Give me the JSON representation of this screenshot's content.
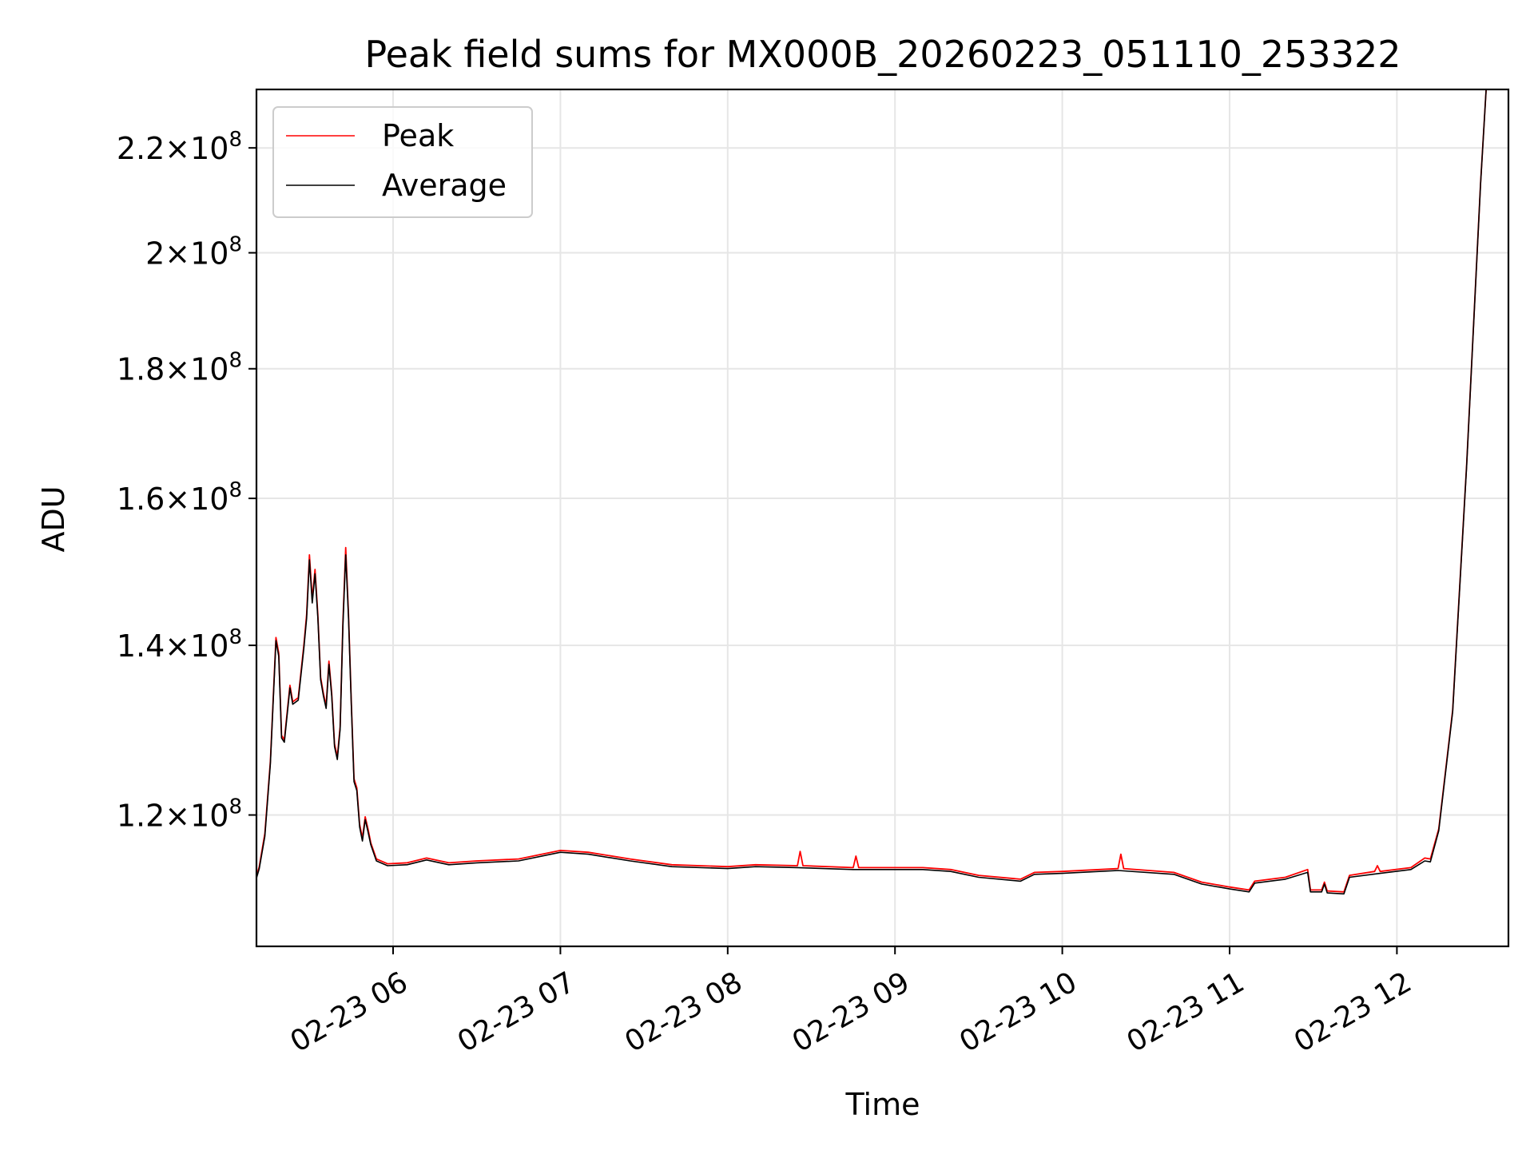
{
  "chart_data": {
    "type": "line",
    "title": "Peak field sums for MX000B_20260223_051110_253322",
    "xlabel": "Time",
    "ylabel": "ADU",
    "y_scale": "log",
    "grid": true,
    "legend_position": "top-left",
    "xlim": [
      "2026-02-23T05:11",
      "2026-02-23T12:40"
    ],
    "ylim": [
      106500000,
      232000000
    ],
    "x_ticks": [
      {
        "t": "2026-02-23T06:00",
        "label": "02-23 06"
      },
      {
        "t": "2026-02-23T07:00",
        "label": "02-23 07"
      },
      {
        "t": "2026-02-23T08:00",
        "label": "02-23 08"
      },
      {
        "t": "2026-02-23T09:00",
        "label": "02-23 09"
      },
      {
        "t": "2026-02-23T10:00",
        "label": "02-23 10"
      },
      {
        "t": "2026-02-23T11:00",
        "label": "02-23 11"
      },
      {
        "t": "2026-02-23T12:00",
        "label": "02-23 12"
      }
    ],
    "y_ticks": [
      {
        "v": 120000000,
        "mant": "1.2",
        "exp": "8"
      },
      {
        "v": 140000000,
        "mant": "1.4",
        "exp": "8"
      },
      {
        "v": 160000000,
        "mant": "1.6",
        "exp": "8"
      },
      {
        "v": 180000000,
        "mant": "1.8",
        "exp": "8"
      },
      {
        "v": 200000000,
        "mant": "2",
        "exp": "8"
      },
      {
        "v": 220000000,
        "mant": "2.2",
        "exp": "8"
      }
    ],
    "series": [
      {
        "name": "Peak",
        "color": "#ff0000",
        "points": [
          [
            "2026-02-23T05:11",
            113500000
          ],
          [
            "2026-02-23T05:12",
            114500000
          ],
          [
            "2026-02-23T05:14",
            118000000
          ],
          [
            "2026-02-23T05:16",
            126000000
          ],
          [
            "2026-02-23T05:18",
            141000000
          ],
          [
            "2026-02-23T05:19",
            139000000
          ],
          [
            "2026-02-23T05:20",
            129000000
          ],
          [
            "2026-02-23T05:21",
            128500000
          ],
          [
            "2026-02-23T05:23",
            135000000
          ],
          [
            "2026-02-23T05:24",
            133000000
          ],
          [
            "2026-02-23T05:26",
            133500000
          ],
          [
            "2026-02-23T05:28",
            140000000
          ],
          [
            "2026-02-23T05:29",
            144000000
          ],
          [
            "2026-02-23T05:30",
            152000000
          ],
          [
            "2026-02-23T05:31",
            146000000
          ],
          [
            "2026-02-23T05:32",
            150000000
          ],
          [
            "2026-02-23T05:33",
            144000000
          ],
          [
            "2026-02-23T05:34",
            136000000
          ],
          [
            "2026-02-23T05:35",
            134000000
          ],
          [
            "2026-02-23T05:36",
            132500000
          ],
          [
            "2026-02-23T05:37",
            138000000
          ],
          [
            "2026-02-23T05:38",
            134000000
          ],
          [
            "2026-02-23T05:39",
            128000000
          ],
          [
            "2026-02-23T05:40",
            126500000
          ],
          [
            "2026-02-23T05:41",
            130000000
          ],
          [
            "2026-02-23T05:42",
            143000000
          ],
          [
            "2026-02-23T05:43",
            153000000
          ],
          [
            "2026-02-23T05:44",
            144000000
          ],
          [
            "2026-02-23T05:45",
            133000000
          ],
          [
            "2026-02-23T05:46",
            124000000
          ],
          [
            "2026-02-23T05:47",
            123000000
          ],
          [
            "2026-02-23T05:48",
            119000000
          ],
          [
            "2026-02-23T05:49",
            117500000
          ],
          [
            "2026-02-23T05:50",
            119800000
          ],
          [
            "2026-02-23T05:51",
            118500000
          ],
          [
            "2026-02-23T05:52",
            117000000
          ],
          [
            "2026-02-23T05:54",
            115300000
          ],
          [
            "2026-02-23T05:58",
            114800000
          ],
          [
            "2026-02-23T06:05",
            114900000
          ],
          [
            "2026-02-23T06:12",
            115400000
          ],
          [
            "2026-02-23T06:20",
            114900000
          ],
          [
            "2026-02-23T06:30",
            115100000
          ],
          [
            "2026-02-23T06:45",
            115300000
          ],
          [
            "2026-02-23T07:00",
            116200000
          ],
          [
            "2026-02-23T07:10",
            116000000
          ],
          [
            "2026-02-23T07:25",
            115300000
          ],
          [
            "2026-02-23T07:40",
            114700000
          ],
          [
            "2026-02-23T08:00",
            114500000
          ],
          [
            "2026-02-23T08:10",
            114700000
          ],
          [
            "2026-02-23T08:25",
            114600000
          ],
          [
            "2026-02-23T08:26",
            116100000
          ],
          [
            "2026-02-23T08:27",
            114600000
          ],
          [
            "2026-02-23T08:45",
            114400000
          ],
          [
            "2026-02-23T08:46",
            115600000
          ],
          [
            "2026-02-23T08:47",
            114400000
          ],
          [
            "2026-02-23T09:10",
            114400000
          ],
          [
            "2026-02-23T09:20",
            114200000
          ],
          [
            "2026-02-23T09:30",
            113600000
          ],
          [
            "2026-02-23T09:45",
            113200000
          ],
          [
            "2026-02-23T09:50",
            113900000
          ],
          [
            "2026-02-23T10:00",
            114000000
          ],
          [
            "2026-02-23T10:20",
            114300000
          ],
          [
            "2026-02-23T10:21",
            115800000
          ],
          [
            "2026-02-23T10:22",
            114300000
          ],
          [
            "2026-02-23T10:40",
            113900000
          ],
          [
            "2026-02-23T10:50",
            112900000
          ],
          [
            "2026-02-23T11:00",
            112400000
          ],
          [
            "2026-02-23T11:07",
            112100000
          ],
          [
            "2026-02-23T11:09",
            113000000
          ],
          [
            "2026-02-23T11:20",
            113400000
          ],
          [
            "2026-02-23T11:28",
            114200000
          ],
          [
            "2026-02-23T11:29",
            112100000
          ],
          [
            "2026-02-23T11:33",
            112100000
          ],
          [
            "2026-02-23T11:34",
            112900000
          ],
          [
            "2026-02-23T11:35",
            112000000
          ],
          [
            "2026-02-23T11:41",
            111900000
          ],
          [
            "2026-02-23T11:43",
            113600000
          ],
          [
            "2026-02-23T11:52",
            114000000
          ],
          [
            "2026-02-23T11:53",
            114600000
          ],
          [
            "2026-02-23T11:54",
            114000000
          ],
          [
            "2026-02-23T12:05",
            114400000
          ],
          [
            "2026-02-23T12:10",
            115400000
          ],
          [
            "2026-02-23T12:12",
            115300000
          ],
          [
            "2026-02-23T12:15",
            118500000
          ],
          [
            "2026-02-23T12:20",
            132000000
          ],
          [
            "2026-02-23T12:25",
            165000000
          ],
          [
            "2026-02-23T12:30",
            213000000
          ],
          [
            "2026-02-23T12:32",
            232000000
          ]
        ]
      },
      {
        "name": "Average",
        "color": "#000000",
        "points": [
          [
            "2026-02-23T05:11",
            113300000
          ],
          [
            "2026-02-23T05:12",
            114300000
          ],
          [
            "2026-02-23T05:14",
            117700000
          ],
          [
            "2026-02-23T05:16",
            125700000
          ],
          [
            "2026-02-23T05:18",
            140600000
          ],
          [
            "2026-02-23T05:19",
            138600000
          ],
          [
            "2026-02-23T05:20",
            128700000
          ],
          [
            "2026-02-23T05:21",
            128200000
          ],
          [
            "2026-02-23T05:23",
            134700000
          ],
          [
            "2026-02-23T05:24",
            132700000
          ],
          [
            "2026-02-23T05:26",
            133200000
          ],
          [
            "2026-02-23T05:28",
            139600000
          ],
          [
            "2026-02-23T05:29",
            143500000
          ],
          [
            "2026-02-23T05:30",
            151300000
          ],
          [
            "2026-02-23T05:31",
            145500000
          ],
          [
            "2026-02-23T05:32",
            149400000
          ],
          [
            "2026-02-23T05:33",
            143600000
          ],
          [
            "2026-02-23T05:34",
            135700000
          ],
          [
            "2026-02-23T05:35",
            133700000
          ],
          [
            "2026-02-23T05:36",
            132200000
          ],
          [
            "2026-02-23T05:37",
            137600000
          ],
          [
            "2026-02-23T05:38",
            133700000
          ],
          [
            "2026-02-23T05:39",
            127700000
          ],
          [
            "2026-02-23T05:40",
            126200000
          ],
          [
            "2026-02-23T05:41",
            129700000
          ],
          [
            "2026-02-23T05:42",
            142500000
          ],
          [
            "2026-02-23T05:43",
            152000000
          ],
          [
            "2026-02-23T05:44",
            143600000
          ],
          [
            "2026-02-23T05:45",
            132700000
          ],
          [
            "2026-02-23T05:46",
            123700000
          ],
          [
            "2026-02-23T05:47",
            122700000
          ],
          [
            "2026-02-23T05:48",
            118700000
          ],
          [
            "2026-02-23T05:49",
            117200000
          ],
          [
            "2026-02-23T05:50",
            119500000
          ],
          [
            "2026-02-23T05:51",
            118200000
          ],
          [
            "2026-02-23T05:52",
            116800000
          ],
          [
            "2026-02-23T05:54",
            115100000
          ],
          [
            "2026-02-23T05:58",
            114600000
          ],
          [
            "2026-02-23T06:05",
            114700000
          ],
          [
            "2026-02-23T06:12",
            115200000
          ],
          [
            "2026-02-23T06:20",
            114700000
          ],
          [
            "2026-02-23T06:30",
            114900000
          ],
          [
            "2026-02-23T06:45",
            115100000
          ],
          [
            "2026-02-23T07:00",
            116000000
          ],
          [
            "2026-02-23T07:10",
            115800000
          ],
          [
            "2026-02-23T07:25",
            115100000
          ],
          [
            "2026-02-23T07:40",
            114500000
          ],
          [
            "2026-02-23T08:00",
            114300000
          ],
          [
            "2026-02-23T08:10",
            114500000
          ],
          [
            "2026-02-23T08:25",
            114400000
          ],
          [
            "2026-02-23T08:45",
            114200000
          ],
          [
            "2026-02-23T09:10",
            114200000
          ],
          [
            "2026-02-23T09:20",
            114000000
          ],
          [
            "2026-02-23T09:30",
            113400000
          ],
          [
            "2026-02-23T09:45",
            113000000
          ],
          [
            "2026-02-23T09:50",
            113700000
          ],
          [
            "2026-02-23T10:00",
            113800000
          ],
          [
            "2026-02-23T10:20",
            114100000
          ],
          [
            "2026-02-23T10:40",
            113700000
          ],
          [
            "2026-02-23T10:50",
            112700000
          ],
          [
            "2026-02-23T11:00",
            112200000
          ],
          [
            "2026-02-23T11:07",
            111900000
          ],
          [
            "2026-02-23T11:09",
            112800000
          ],
          [
            "2026-02-23T11:20",
            113200000
          ],
          [
            "2026-02-23T11:28",
            113900000
          ],
          [
            "2026-02-23T11:29",
            111900000
          ],
          [
            "2026-02-23T11:33",
            111900000
          ],
          [
            "2026-02-23T11:34",
            112700000
          ],
          [
            "2026-02-23T11:35",
            111800000
          ],
          [
            "2026-02-23T11:41",
            111700000
          ],
          [
            "2026-02-23T11:43",
            113400000
          ],
          [
            "2026-02-23T11:54",
            113800000
          ],
          [
            "2026-02-23T12:05",
            114200000
          ],
          [
            "2026-02-23T12:10",
            115100000
          ],
          [
            "2026-02-23T12:12",
            115000000
          ],
          [
            "2026-02-23T12:15",
            118300000
          ],
          [
            "2026-02-23T12:20",
            131800000
          ],
          [
            "2026-02-23T12:25",
            164800000
          ],
          [
            "2026-02-23T12:30",
            212800000
          ],
          [
            "2026-02-23T12:32",
            232000000
          ]
        ]
      }
    ]
  }
}
